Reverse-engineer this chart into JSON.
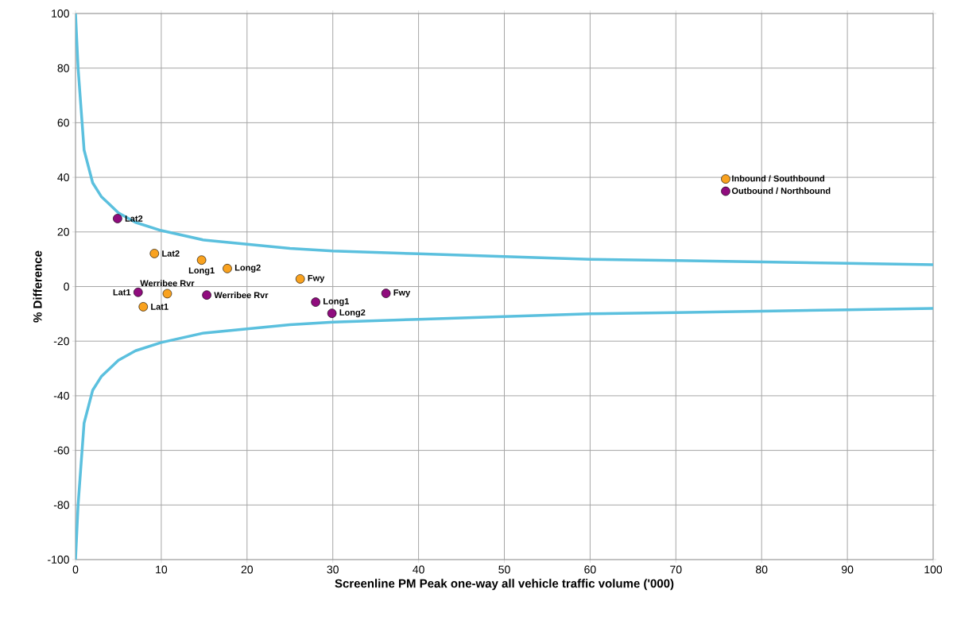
{
  "chart_data": {
    "type": "scatter",
    "xlabel": "Screenline PM Peak one-way all vehicle traffic volume ('000)",
    "ylabel": "% Difference",
    "xlim": [
      0,
      100
    ],
    "xticks": [
      0,
      10,
      20,
      30,
      40,
      50,
      60,
      70,
      80,
      90,
      100
    ],
    "ylim": [
      -100,
      100
    ],
    "yticks": [
      -100,
      -80,
      -60,
      -40,
      -20,
      0,
      20,
      40,
      60,
      80,
      100
    ],
    "grid": true,
    "legend": "right",
    "series": [
      {
        "name": "Inbound / Southbound",
        "marker": "circle",
        "color": "#f9a21f",
        "x": [
          9.2,
          14.7,
          17.7,
          26.2,
          10.7,
          7.9
        ],
        "values": [
          12.1,
          9.7,
          6.6,
          2.8,
          -2.6,
          -7.4
        ]
      },
      {
        "name": "Outbound / Northbound",
        "marker": "circle",
        "color": "#900c7e",
        "x": [
          4.9,
          7.3,
          15.3,
          28.0,
          29.9,
          36.2
        ],
        "values": [
          24.9,
          -2.1,
          -3.1,
          -5.7,
          -9.8,
          -2.5
        ]
      },
      {
        "type": "line",
        "marker": "none",
        "color": "#5bc0de",
        "line_style": "solid",
        "x": [
          0,
          0.3,
          1,
          2,
          3,
          5,
          7,
          10,
          15,
          20,
          25,
          30,
          40,
          50,
          60,
          70,
          80,
          90,
          100
        ],
        "values": [
          100,
          80,
          50,
          38,
          33,
          27,
          23.5,
          20.5,
          17,
          15.5,
          14,
          13,
          12,
          11,
          10,
          9.5,
          9,
          8.5,
          8
        ]
      },
      {
        "type": "line",
        "marker": "none",
        "color": "#5bc0de",
        "line_style": "solid",
        "x": [
          0,
          0.3,
          1,
          2,
          3,
          5,
          7,
          10,
          15,
          20,
          25,
          30,
          40,
          50,
          60,
          70,
          80,
          90,
          100
        ],
        "values": [
          -100,
          -80,
          -50,
          -38,
          -33,
          -27,
          -23.5,
          -20.5,
          -17,
          -15.5,
          -14,
          -13,
          -12,
          -11,
          -10,
          -9.5,
          -9,
          -8.5,
          -8
        ]
      }
    ],
    "annotations": [
      {
        "text": "Lat2",
        "x": 9.2,
        "y": 12.1
      },
      {
        "text": "Long1",
        "x": 14.7,
        "y": 9.7
      },
      {
        "text": "Long2",
        "x": 17.7,
        "y": 6.6
      },
      {
        "text": "Fwy",
        "x": 26.2,
        "y": 2.8
      },
      {
        "text": "Werribee Rvr",
        "x": 10.7,
        "y": -2.6
      },
      {
        "text": "Lat1",
        "x": 7.9,
        "y": -7.4
      },
      {
        "text": "Lat2",
        "x": 4.9,
        "y": 24.9
      },
      {
        "text": "Lat1",
        "x": 7.3,
        "y": -2.1
      },
      {
        "text": "Werribee Rvr",
        "x": 15.3,
        "y": -3.1
      },
      {
        "text": "Long1",
        "x": 28.0,
        "y": -5.7
      },
      {
        "text": "Long2",
        "x": 29.9,
        "y": -9.8
      },
      {
        "text": "Fwy",
        "x": 36.2,
        "y": -2.5
      }
    ]
  }
}
